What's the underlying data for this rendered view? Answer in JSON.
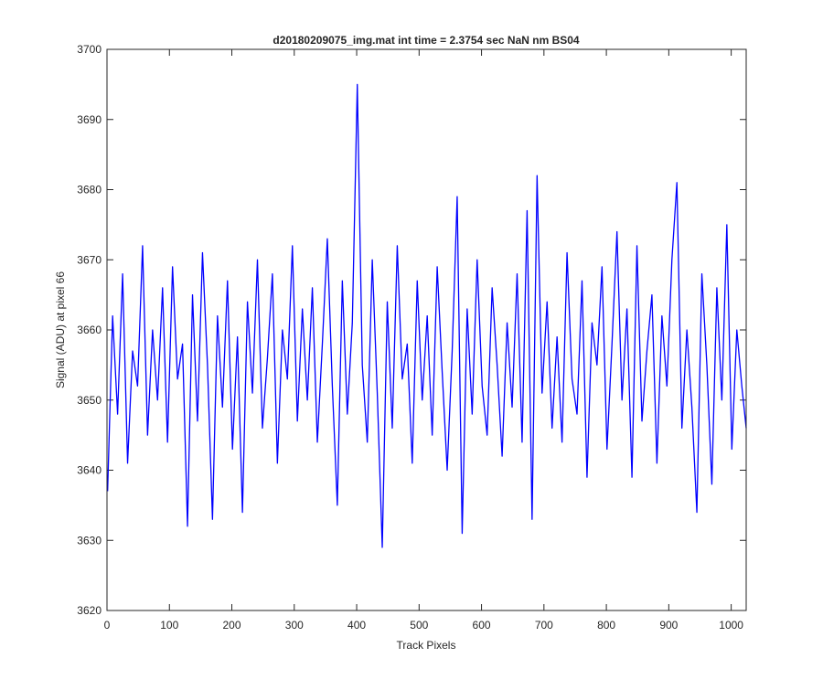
{
  "chart_data": {
    "type": "line",
    "title": "d20180209075_img.mat int time = 2.3754 sec  NaN nm BS04",
    "x_label": "Track Pixels",
    "y_label": "Signal (ADU) at pixel 66",
    "x": [
      1,
      9,
      17,
      25,
      33,
      41,
      49,
      57,
      65,
      73,
      81,
      89,
      97,
      105,
      113,
      121,
      129,
      137,
      145,
      153,
      161,
      169,
      177,
      185,
      193,
      201,
      209,
      217,
      225,
      233,
      241,
      249,
      257,
      265,
      273,
      281,
      289,
      297,
      305,
      313,
      321,
      329,
      337,
      345,
      353,
      361,
      369,
      377,
      385,
      393,
      401,
      409,
      417,
      425,
      433,
      441,
      449,
      457,
      465,
      473,
      481,
      489,
      497,
      505,
      513,
      521,
      529,
      537,
      545,
      553,
      561,
      569,
      577,
      585,
      593,
      601,
      609,
      617,
      625,
      633,
      641,
      649,
      657,
      665,
      673,
      681,
      689,
      697,
      705,
      713,
      721,
      729,
      737,
      745,
      753,
      761,
      769,
      777,
      785,
      793,
      801,
      809,
      817,
      825,
      833,
      841,
      849,
      857,
      865,
      873,
      881,
      889,
      897,
      905,
      913,
      921,
      929,
      937,
      945,
      953,
      961,
      969,
      977,
      985,
      993,
      1001,
      1009,
      1017,
      1024
    ],
    "series": [
      {
        "name": "signal",
        "color": "#0000ff",
        "values": [
          3637,
          3662,
          3648,
          3668,
          3641,
          3657,
          3652,
          3672,
          3645,
          3660,
          3650,
          3666,
          3644,
          3669,
          3653,
          3658,
          3632,
          3665,
          3647,
          3671,
          3655,
          3633,
          3662,
          3649,
          3667,
          3643,
          3659,
          3634,
          3664,
          3651,
          3670,
          3646,
          3656,
          3668,
          3641,
          3660,
          3653,
          3672,
          3647,
          3663,
          3650,
          3666,
          3644,
          3658,
          3673,
          3652,
          3635,
          3667,
          3648,
          3661,
          3695,
          3655,
          3644,
          3670,
          3651,
          3629,
          3664,
          3646,
          3672,
          3653,
          3658,
          3641,
          3667,
          3650,
          3662,
          3645,
          3669,
          3654,
          3640,
          3657,
          3679,
          3631,
          3663,
          3648,
          3670,
          3652,
          3645,
          3666,
          3655,
          3642,
          3661,
          3649,
          3668,
          3644,
          3677,
          3633,
          3682,
          3651,
          3664,
          3646,
          3659,
          3644,
          3671,
          3653,
          3648,
          3667,
          3639,
          3661,
          3655,
          3669,
          3643,
          3658,
          3674,
          3650,
          3663,
          3639,
          3672,
          3647,
          3657,
          3665,
          3641,
          3662,
          3652,
          3670,
          3681,
          3646,
          3660,
          3649,
          3634,
          3668,
          3655,
          3638,
          3666,
          3650,
          3675,
          3643,
          3660,
          3652,
          3646
        ]
      }
    ],
    "xlim": [
      0,
      1024
    ],
    "xticks": [
      0,
      100,
      200,
      300,
      400,
      500,
      600,
      700,
      800,
      900,
      1000
    ],
    "ylim": [
      3620,
      3700
    ],
    "yticks": [
      3620,
      3630,
      3640,
      3650,
      3660,
      3670,
      3680,
      3690,
      3700
    ]
  }
}
